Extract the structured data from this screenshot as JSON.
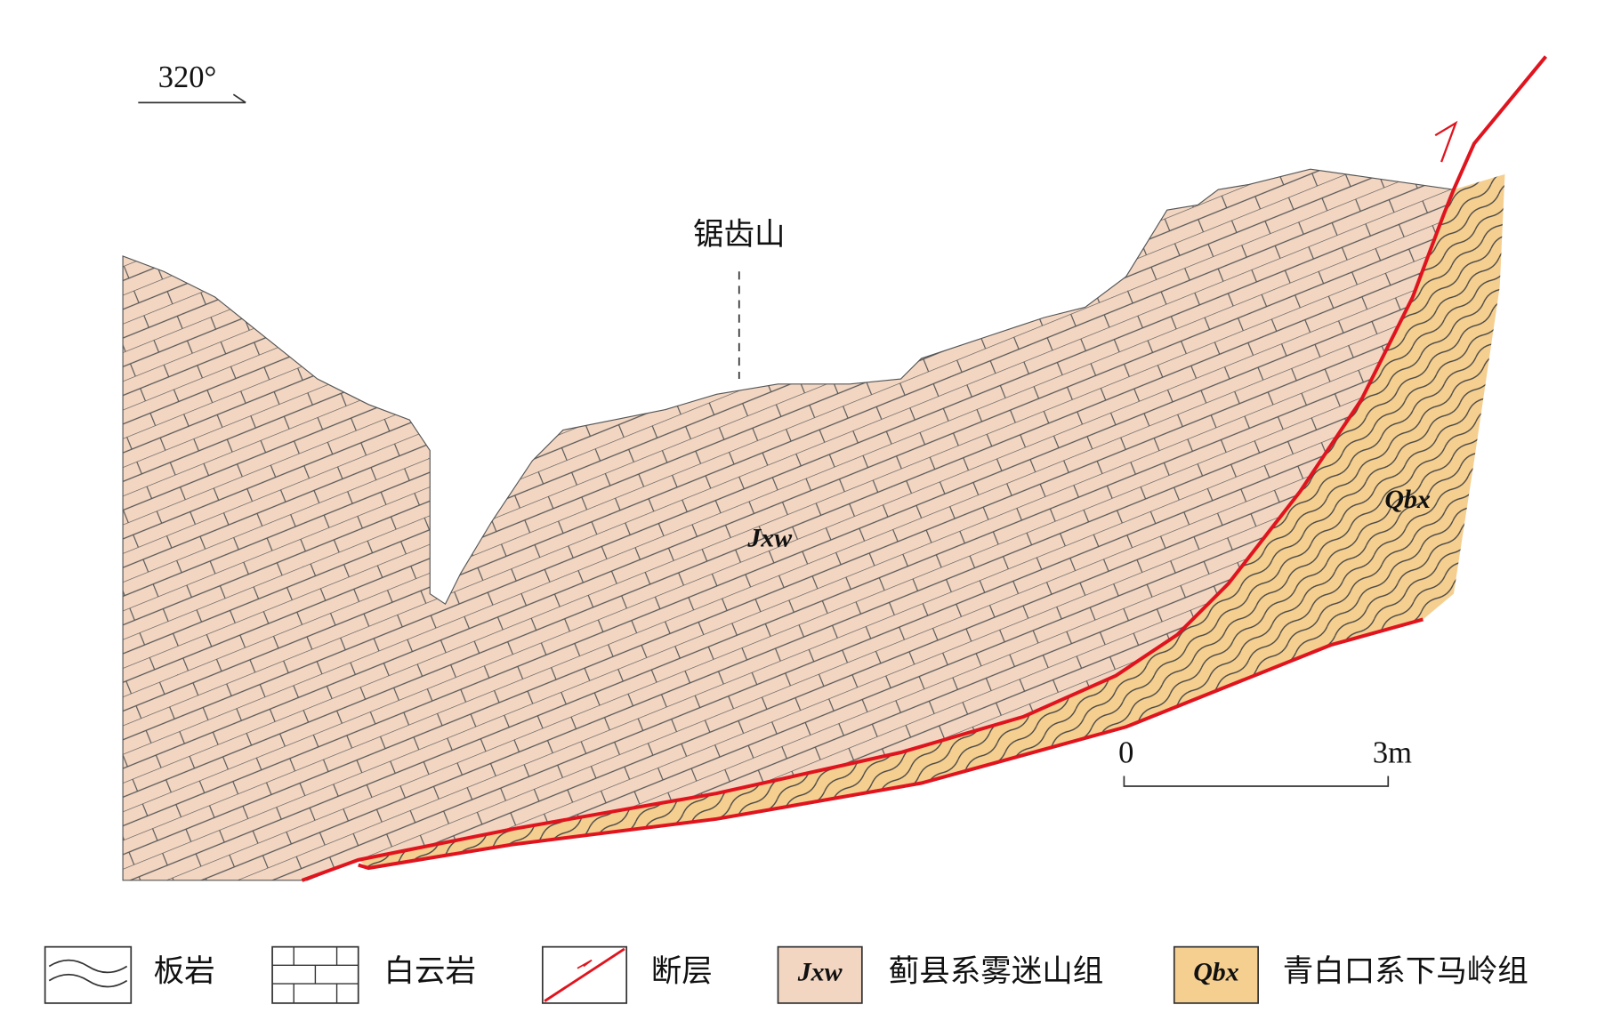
{
  "orientation": "320°",
  "peak_label": "锯齿山",
  "units": [
    {
      "code": "Jxw"
    },
    {
      "code": "Qbx"
    }
  ],
  "scale": {
    "start": "0",
    "end": "3m"
  },
  "legend": [
    {
      "label": "板岩"
    },
    {
      "label": "白云岩"
    },
    {
      "label": "断层"
    },
    {
      "code": "Jxw",
      "label": "蓟县系雾迷山组"
    },
    {
      "code": "Qbx",
      "label": "青白口系下马岭组"
    }
  ]
}
